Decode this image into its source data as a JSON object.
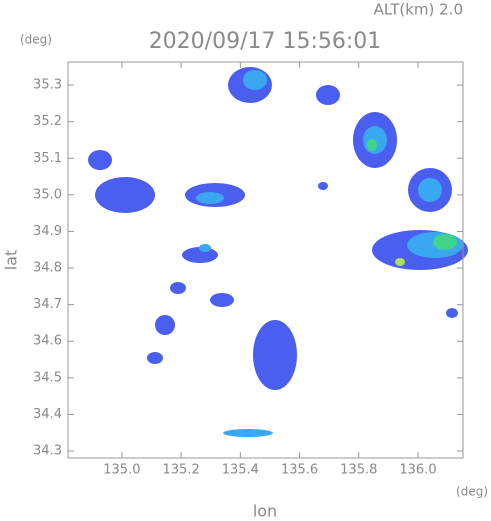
{
  "chart_data": {
    "type": "radar-map",
    "title": "2020/09/17 15:56:01",
    "altitude": "ALT(km) 2.0",
    "x_label": "lon",
    "y_label": "lat",
    "x_unit": "(deg)",
    "y_unit": "(deg)",
    "xlim": [
      134.818,
      136.152
    ],
    "ylim": [
      34.281,
      35.363
    ],
    "xticks": [
      {
        "value": 135.0,
        "label": "135.0"
      },
      135.2,
      135.4,
      135.6,
      135.8,
      {
        "value": 136.0,
        "label": "136.0"
      }
    ],
    "yticks": [
      34.3,
      34.4,
      34.5,
      34.6,
      34.7,
      34.8,
      34.9,
      {
        "value": 35.0,
        "label": "35.0"
      },
      35.1,
      35.2,
      35.3
    ]
  }
}
